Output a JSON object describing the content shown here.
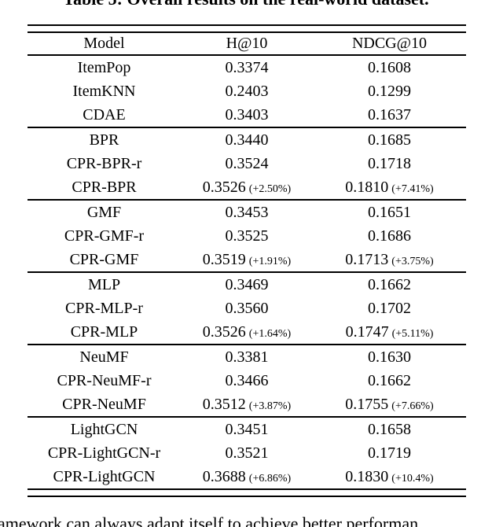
{
  "colors": {
    "background": "#ffffff",
    "text": "#000000",
    "rule": "#000000"
  },
  "caption_clipped": "Table 5: Overall results on the real-world dataset.",
  "table": {
    "columns": [
      "Model",
      "H@10",
      "NDCG@10"
    ],
    "groups": [
      {
        "rows": [
          {
            "model": "ItemPop",
            "h10": "0.3374",
            "ndcg10": "0.1608"
          },
          {
            "model": "ItemKNN",
            "h10": "0.2403",
            "ndcg10": "0.1299"
          },
          {
            "model": "CDAE",
            "h10": "0.3403",
            "ndcg10": "0.1637"
          }
        ]
      },
      {
        "rows": [
          {
            "model": "BPR",
            "h10": "0.3440",
            "ndcg10": "0.1685"
          },
          {
            "model": "CPR-BPR-r",
            "h10": "0.3524",
            "ndcg10": "0.1718"
          },
          {
            "model": "CPR-BPR",
            "h10": "0.3526",
            "h10_pct": "(+2.50%)",
            "ndcg10": "0.1810",
            "ndcg10_pct": "(+7.41%)"
          }
        ]
      },
      {
        "rows": [
          {
            "model": "GMF",
            "h10": "0.3453",
            "ndcg10": "0.1651"
          },
          {
            "model": "CPR-GMF-r",
            "h10": "0.3525",
            "ndcg10": "0.1686"
          },
          {
            "model": "CPR-GMF",
            "h10": "0.3519",
            "h10_pct": "(+1.91%)",
            "ndcg10": "0.1713",
            "ndcg10_pct": "(+3.75%)"
          }
        ]
      },
      {
        "rows": [
          {
            "model": "MLP",
            "h10": "0.3469",
            "ndcg10": "0.1662"
          },
          {
            "model": "CPR-MLP-r",
            "h10": "0.3560",
            "ndcg10": "0.1702"
          },
          {
            "model": "CPR-MLP",
            "h10": "0.3526",
            "h10_pct": "(+1.64%)",
            "ndcg10": "0.1747",
            "ndcg10_pct": "(+5.11%)"
          }
        ]
      },
      {
        "rows": [
          {
            "model": "NeuMF",
            "h10": "0.3381",
            "ndcg10": "0.1630"
          },
          {
            "model": "CPR-NeuMF-r",
            "h10": "0.3466",
            "ndcg10": "0.1662"
          },
          {
            "model": "CPR-NeuMF",
            "h10": "0.3512",
            "h10_pct": "(+3.87%)",
            "ndcg10": "0.1755",
            "ndcg10_pct": "(+7.66%)"
          }
        ]
      },
      {
        "rows": [
          {
            "model": "LightGCN",
            "h10": "0.3451",
            "ndcg10": "0.1658"
          },
          {
            "model": "CPR-LightGCN-r",
            "h10": "0.3521",
            "ndcg10": "0.1719"
          },
          {
            "model": "CPR-LightGCN",
            "h10": "0.3688",
            "h10_pct": "(+6.86%)",
            "ndcg10": "0.1830",
            "ndcg10_pct": "(+10.4%)"
          }
        ]
      }
    ]
  },
  "footer_text_clipped": "amework can always adapt itself to achieve better performan"
}
